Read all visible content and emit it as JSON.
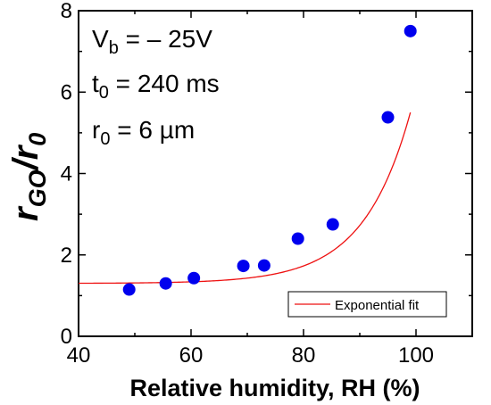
{
  "chart_data": {
    "type": "scatter",
    "xlabel": "Relative humidity, RH (%)",
    "ylabel": {
      "main": "r",
      "sub": "GO",
      "slash": "/",
      "main2": "r",
      "sub2": "0"
    },
    "xlim": [
      40,
      110
    ],
    "ylim": [
      0,
      8
    ],
    "xticks": [
      40,
      60,
      80,
      100
    ],
    "yticks": [
      0,
      2,
      4,
      6,
      8
    ],
    "xtick_labels": [
      "40",
      "60",
      "80",
      "100"
    ],
    "ytick_labels": [
      "0",
      "2",
      "4",
      "6",
      "8"
    ],
    "grid": false,
    "annotations": [
      {
        "main": "V",
        "sub": "b",
        "rest": " = – 25V"
      },
      {
        "main": "t",
        "sub": "0",
        "rest": " = 240 ms"
      },
      {
        "main": "r",
        "sub": "0",
        "rest": " = 6 µm"
      }
    ],
    "series": [
      {
        "style": "markers",
        "color": "#0000ee",
        "x": [
          49,
          55.5,
          60.5,
          69.3,
          73,
          79,
          85.2,
          95,
          99
        ],
        "y": [
          1.15,
          1.3,
          1.43,
          1.73,
          1.74,
          2.4,
          2.75,
          5.38,
          7.5
        ]
      },
      {
        "name": "Exponential fit",
        "style": "line",
        "color": "#ee1111",
        "model": {
          "y0": 1.3,
          "A": 2.91e-05,
          "k": 0.12,
          "xmin": 40,
          "xmax": 99.2
        }
      }
    ],
    "legend": {
      "position": "bottom-right",
      "entries": [
        "Exponential fit"
      ]
    }
  }
}
